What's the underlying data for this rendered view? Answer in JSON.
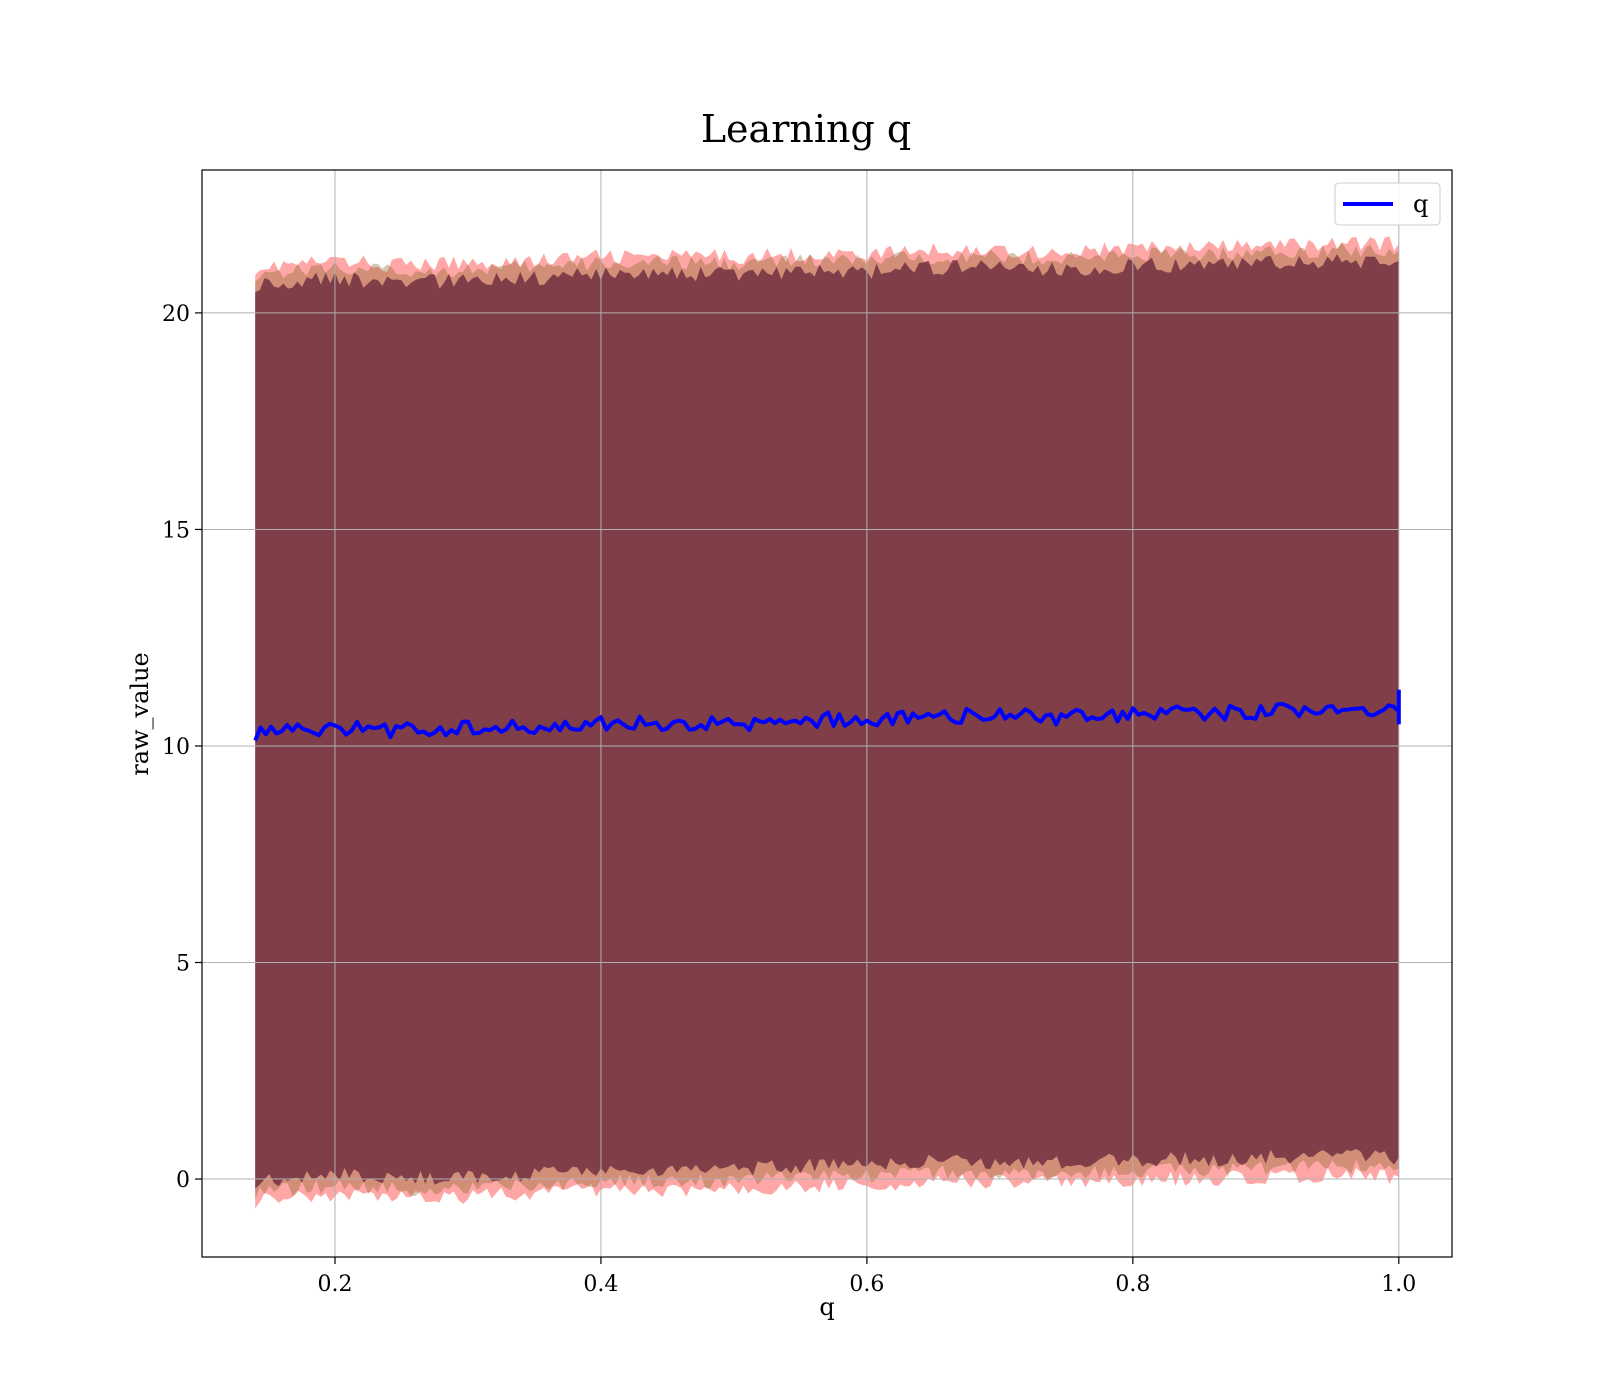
{
  "chart_data": {
    "type": "line",
    "title": "Learning q",
    "xlabel": "q",
    "ylabel": "raw_value",
    "xlim": [
      0.1,
      1.04
    ],
    "ylim": [
      -1.8,
      23.3
    ],
    "xticks": [
      0.2,
      0.4,
      0.6,
      0.8,
      1.0
    ],
    "xtick_labels": [
      "0.2",
      "0.4",
      "0.6",
      "0.8",
      "1.0"
    ],
    "yticks": [
      0,
      5,
      10,
      15,
      20
    ],
    "ytick_labels": [
      "0",
      "5",
      "10",
      "15",
      "20"
    ],
    "grid": true,
    "legend": {
      "placement": "top-right",
      "entries": [
        "q"
      ]
    },
    "x_range": [
      0.14,
      1.0
    ],
    "series": [
      {
        "name": "q",
        "color": "#0000ff",
        "x": [
          0.14,
          0.2,
          0.25,
          0.3,
          0.35,
          0.4,
          0.45,
          0.5,
          0.55,
          0.6,
          0.65,
          0.7,
          0.75,
          0.8,
          0.85,
          0.9,
          0.95,
          1.0
        ],
        "values": [
          10.3,
          10.45,
          10.35,
          10.45,
          10.4,
          10.55,
          10.5,
          10.5,
          10.6,
          10.6,
          10.7,
          10.7,
          10.65,
          10.75,
          10.75,
          10.8,
          10.85,
          10.8
        ]
      }
    ],
    "bands": [
      {
        "color": "#ff0000",
        "opacity": 0.35,
        "x": [
          0.14,
          0.2,
          0.25,
          0.3,
          0.35,
          0.4,
          0.45,
          0.5,
          0.55,
          0.6,
          0.65,
          0.7,
          0.75,
          0.8,
          0.85,
          0.9,
          0.95,
          1.0
        ],
        "upper": [
          21.05,
          21.2,
          21.1,
          21.15,
          21.2,
          21.3,
          21.3,
          21.3,
          21.35,
          21.35,
          21.45,
          21.45,
          21.4,
          21.5,
          21.5,
          21.55,
          21.6,
          21.6
        ],
        "lower": [
          -0.5,
          -0.35,
          -0.45,
          -0.4,
          -0.35,
          -0.25,
          -0.25,
          -0.25,
          -0.15,
          -0.15,
          -0.05,
          -0.05,
          -0.1,
          0.0,
          0.0,
          0.05,
          0.1,
          0.05
        ]
      },
      {
        "color": "#7f6020",
        "opacity": 0.35,
        "x": [
          0.14,
          0.2,
          0.25,
          0.3,
          0.35,
          0.4,
          0.45,
          0.5,
          0.55,
          0.6,
          0.65,
          0.7,
          0.75,
          0.8,
          0.85,
          0.9,
          0.95,
          1.0
        ],
        "upper": [
          20.9,
          21.05,
          20.95,
          21.0,
          21.05,
          21.15,
          21.15,
          21.15,
          21.2,
          21.2,
          21.3,
          21.3,
          21.25,
          21.35,
          21.35,
          21.4,
          21.45,
          21.45
        ],
        "lower": [
          -0.3,
          -0.15,
          -0.25,
          -0.2,
          -0.15,
          -0.05,
          -0.05,
          -0.05,
          0.05,
          0.05,
          0.15,
          0.15,
          0.1,
          0.2,
          0.2,
          0.25,
          0.3,
          0.25
        ]
      },
      {
        "color": "#4a0a2a",
        "opacity": 0.6,
        "x": [
          0.14,
          0.2,
          0.25,
          0.3,
          0.35,
          0.4,
          0.45,
          0.5,
          0.55,
          0.6,
          0.65,
          0.7,
          0.75,
          0.8,
          0.85,
          0.9,
          0.95,
          1.0
        ],
        "upper": [
          20.65,
          20.8,
          20.7,
          20.75,
          20.8,
          20.9,
          20.9,
          20.9,
          20.95,
          20.95,
          21.05,
          21.05,
          21.0,
          21.1,
          21.1,
          21.15,
          21.2,
          21.2
        ],
        "lower": [
          -0.05,
          0.1,
          0.0,
          0.05,
          0.1,
          0.2,
          0.2,
          0.2,
          0.3,
          0.3,
          0.4,
          0.4,
          0.35,
          0.45,
          0.45,
          0.5,
          0.55,
          0.5
        ]
      }
    ]
  }
}
